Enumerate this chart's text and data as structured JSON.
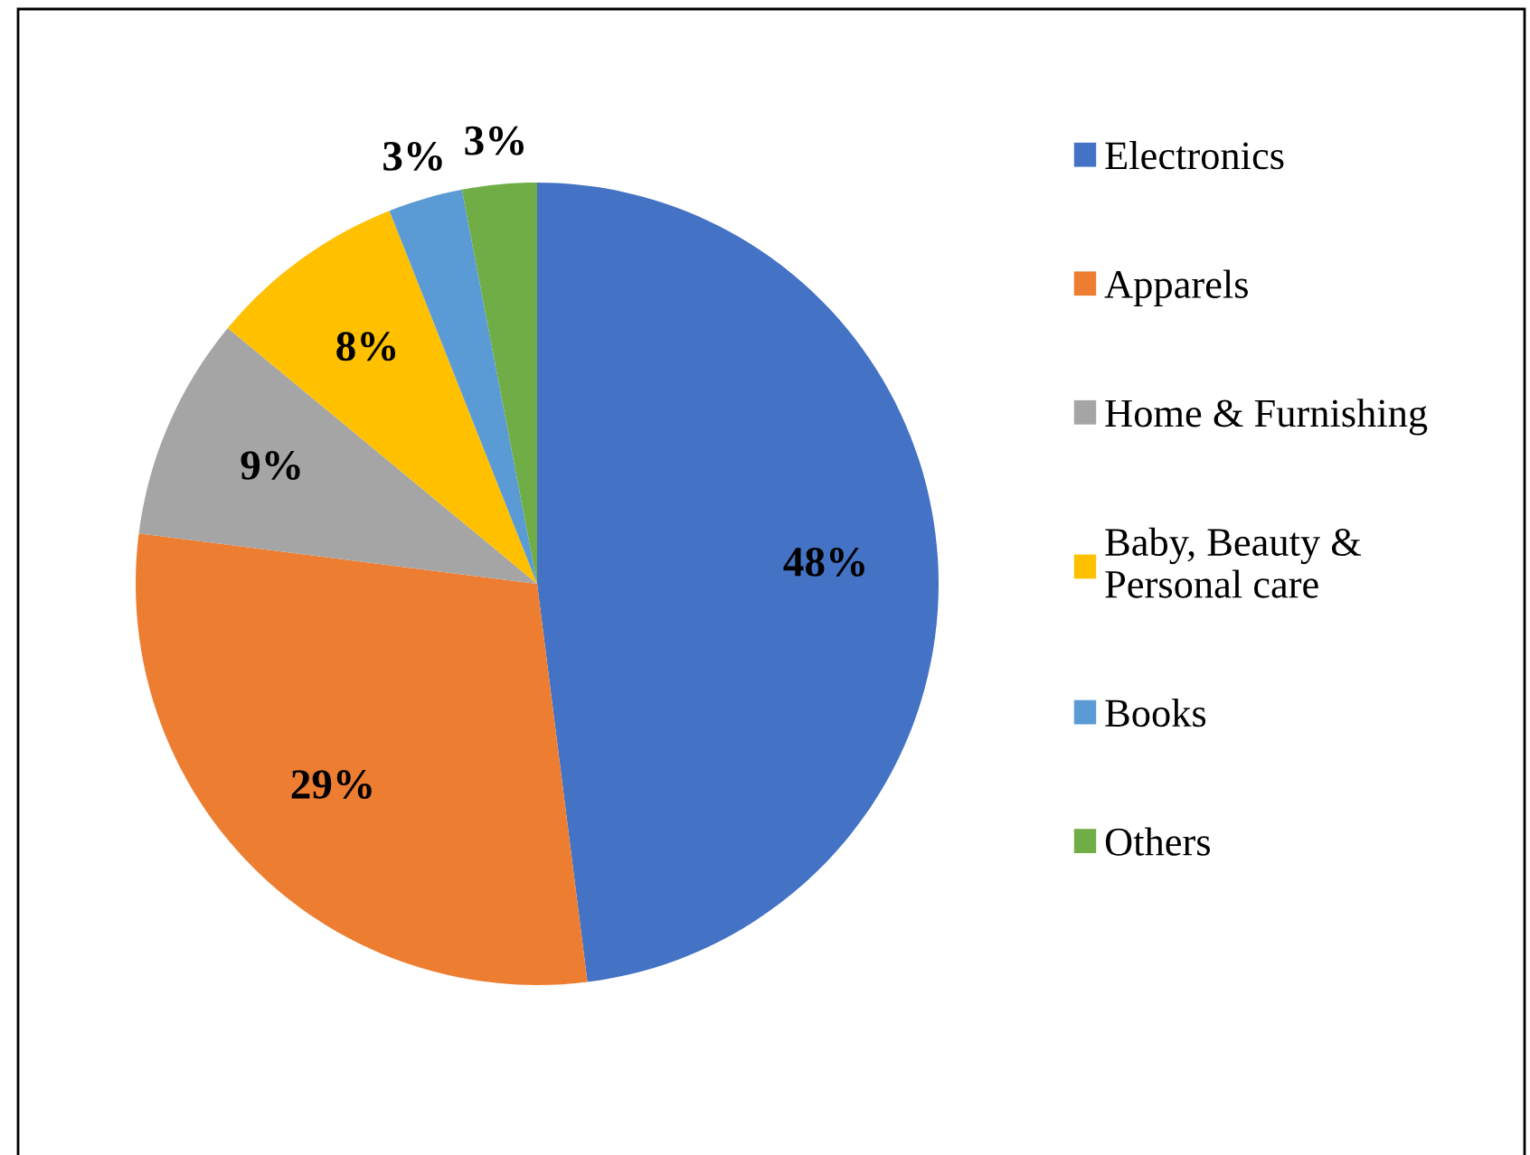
{
  "chart_data": {
    "type": "pie",
    "categories": [
      "Electronics",
      "Apparels",
      "Home & Furnishing",
      "Baby, Beauty &\nPersonal care",
      "Books",
      "Others"
    ],
    "values": [
      48,
      29,
      9,
      8,
      3,
      3
    ],
    "colors": [
      "#4472c4",
      "#ed7d31",
      "#a5a5a5",
      "#ffc000",
      "#5b9bd5",
      "#70ad47"
    ],
    "value_labels": [
      "48%",
      "29%",
      "9%",
      "8%",
      "3%",
      "3%"
    ],
    "legend": "right"
  }
}
